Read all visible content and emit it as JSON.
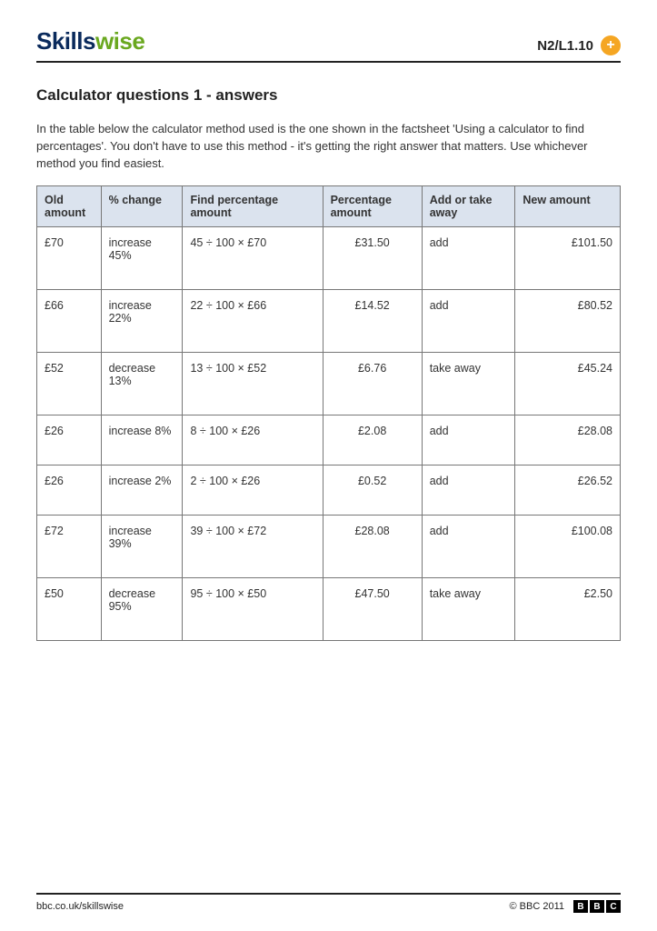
{
  "header": {
    "logo_part1": "Skills",
    "logo_part2": "wise",
    "code": "N2/L1.10",
    "plus_symbol": "+"
  },
  "title": "Calculator questions 1 - answers",
  "intro": "In the table below the calculator method used is the one shown in the factsheet 'Using a calculator to find percentages'. You don't have to use this method - it's getting the right answer that matters. Use whichever method you find easiest.",
  "table": {
    "columns": [
      "Old amount",
      "% change",
      "Find percentage amount",
      "Percentage amount",
      "Add or take away",
      "New amount"
    ],
    "header_bg": "#dbe3ee",
    "border_color": "#777777",
    "rows": [
      [
        "£70",
        "increase 45%",
        "45 ÷ 100 × £70",
        "£31.50",
        "add",
        "£101.50"
      ],
      [
        "£66",
        "increase 22%",
        "22 ÷ 100 × £66",
        "£14.52",
        "add",
        "£80.52"
      ],
      [
        "£52",
        "decrease 13%",
        "13 ÷ 100 × £52",
        "£6.76",
        "take away",
        "£45.24"
      ],
      [
        "£26",
        "increase 8%",
        "8 ÷ 100 × £26",
        "£2.08",
        "add",
        "£28.08"
      ],
      [
        "£26",
        "increase 2%",
        "2 ÷ 100 × £26",
        "£0.52",
        "add",
        "£26.52"
      ],
      [
        "£72",
        "increase 39%",
        "39 ÷ 100 × £72",
        "£28.08",
        "add",
        "£100.08"
      ],
      [
        "£50",
        "decrease 95%",
        "95 ÷ 100 × £50",
        "£47.50",
        "take away",
        "£2.50"
      ]
    ]
  },
  "footer": {
    "url": "bbc.co.uk/skillswise",
    "copyright": "© BBC 2011",
    "bbc_letters": [
      "B",
      "B",
      "C"
    ]
  },
  "colors": {
    "logo_navy": "#0a2a5c",
    "logo_green": "#6aa81f",
    "plus_badge": "#f5a623",
    "text": "#333333",
    "rule": "#222222"
  },
  "typography": {
    "logo_fontsize": 26,
    "title_fontsize": 17,
    "body_fontsize": 13,
    "table_fontsize": 12.5,
    "footer_fontsize": 11
  }
}
